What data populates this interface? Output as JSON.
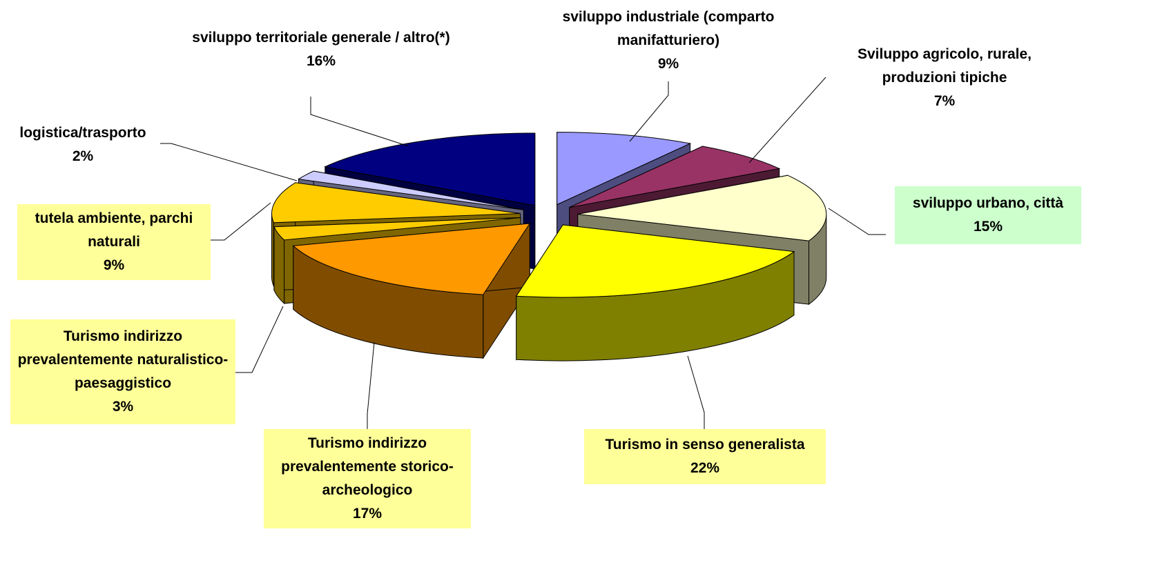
{
  "chart_data": {
    "type": "pie3d",
    "categories": [
      "sviluppo industriale (comparto manifatturiero)",
      "Sviluppo agricolo, rurale, produzioni tipiche",
      "sviluppo urbano, città",
      "Turismo in senso generalista",
      "Turismo indirizzo prevalentemente storico-archeologico",
      "Turismo indirizzo prevalentemente naturalistico-paesaggistico",
      "tutela ambiente, parchi naturali",
      "logistica/trasporto",
      "sviluppo territoriale generale / altro(*)"
    ],
    "values": [
      9,
      7,
      15,
      22,
      17,
      3,
      9,
      2,
      16
    ],
    "value_labels": [
      "9%",
      "7%",
      "15%",
      "22%",
      "17%",
      "3%",
      "9%",
      "2%",
      "16%"
    ],
    "colors": [
      "#9999ff",
      "#993366",
      "#ffffcc",
      "#ffff00",
      "#ff9900",
      "#ffcc00",
      "#ffcc00",
      "#ccccff",
      "#000080"
    ],
    "label_backgrounds": [
      null,
      null,
      "#ccffcc",
      "#ffff99",
      "#ffff99",
      "#ffff99",
      "#ffff99",
      null,
      null
    ]
  }
}
